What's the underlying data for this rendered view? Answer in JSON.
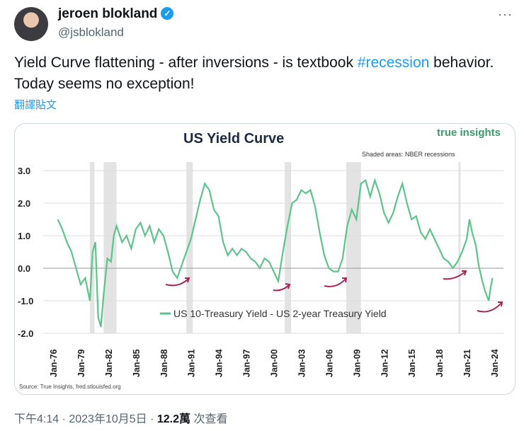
{
  "tweet": {
    "author_name": "jeroen blokland",
    "handle": "@jsblokland",
    "text_before": "Yield Curve flattening - after inversions - is textbook ",
    "hashtag": "#recession",
    "text_after": " behavior. Today seems no exception!",
    "translate_label": "翻譯貼文",
    "time": "下午4:14 · 2023年10月5日 · ",
    "views": "12.2萬",
    "views_label": " 次查看"
  },
  "chart_data": {
    "type": "line",
    "title": "US Yield Curve",
    "brand": "true insights",
    "note": "Shaded areas: NBER recessions",
    "legend": "US 10-Treasury Yield - US 2-year Treasury Yield",
    "source": "Source: True Insights, fred.stlouisfed.org",
    "ylim": [
      -2,
      3
    ],
    "yticks": [
      "3.0",
      "2.0",
      "1.0",
      "0.0",
      "-1.0",
      "-2.0"
    ],
    "xticks": [
      "Jan-76",
      "Jan-79",
      "Jan-82",
      "Jan-85",
      "Jan-88",
      "Jan-91",
      "Jan-94",
      "Jan-97",
      "Jan-00",
      "Jan-03",
      "Jan-06",
      "Jan-09",
      "Jan-12",
      "Jan-15",
      "Jan-18",
      "Jan-21",
      "Jan-24"
    ],
    "xlim": [
      1976,
      2024
    ],
    "recessions": [
      [
        1980.0,
        1980.5
      ],
      [
        1981.5,
        1982.9
      ],
      [
        1990.5,
        1991.2
      ],
      [
        2001.2,
        2001.9
      ],
      [
        2007.9,
        2009.5
      ],
      [
        2020.1,
        2020.3
      ]
    ],
    "line_color": "#5cc48a",
    "series": [
      [
        1976.5,
        1.5
      ],
      [
        1977,
        1.2
      ],
      [
        1977.5,
        0.8
      ],
      [
        1978,
        0.5
      ],
      [
        1978.5,
        0.0
      ],
      [
        1979,
        -0.5
      ],
      [
        1979.5,
        -0.3
      ],
      [
        1980,
        -1.0
      ],
      [
        1980.3,
        0.5
      ],
      [
        1980.6,
        0.8
      ],
      [
        1980.9,
        -1.5
      ],
      [
        1981.2,
        -1.8
      ],
      [
        1981.5,
        -0.8
      ],
      [
        1981.9,
        0.3
      ],
      [
        1982.3,
        0.2
      ],
      [
        1982.6,
        1.0
      ],
      [
        1982.9,
        1.3
      ],
      [
        1983.5,
        0.8
      ],
      [
        1984,
        1.0
      ],
      [
        1984.5,
        0.6
      ],
      [
        1985,
        1.2
      ],
      [
        1985.5,
        1.4
      ],
      [
        1986,
        1.0
      ],
      [
        1986.5,
        1.3
      ],
      [
        1987,
        0.8
      ],
      [
        1987.5,
        1.2
      ],
      [
        1988,
        1.0
      ],
      [
        1988.5,
        0.5
      ],
      [
        1989,
        -0.1
      ],
      [
        1989.5,
        -0.3
      ],
      [
        1990,
        0.1
      ],
      [
        1990.5,
        0.5
      ],
      [
        1991,
        0.9
      ],
      [
        1991.5,
        1.5
      ],
      [
        1992,
        2.1
      ],
      [
        1992.5,
        2.6
      ],
      [
        1993,
        2.4
      ],
      [
        1993.5,
        1.8
      ],
      [
        1994,
        1.6
      ],
      [
        1994.5,
        0.8
      ],
      [
        1995,
        0.4
      ],
      [
        1995.5,
        0.6
      ],
      [
        1996,
        0.4
      ],
      [
        1996.5,
        0.6
      ],
      [
        1997,
        0.5
      ],
      [
        1997.5,
        0.3
      ],
      [
        1998,
        0.2
      ],
      [
        1998.5,
        0.0
      ],
      [
        1999,
        0.3
      ],
      [
        1999.5,
        0.2
      ],
      [
        2000,
        -0.1
      ],
      [
        2000.5,
        -0.4
      ],
      [
        2001,
        0.5
      ],
      [
        2001.5,
        1.3
      ],
      [
        2002,
        2.0
      ],
      [
        2002.5,
        2.1
      ],
      [
        2003,
        2.4
      ],
      [
        2003.5,
        2.3
      ],
      [
        2004,
        2.4
      ],
      [
        2004.5,
        1.9
      ],
      [
        2005,
        1.1
      ],
      [
        2005.5,
        0.4
      ],
      [
        2006,
        0.0
      ],
      [
        2006.5,
        -0.1
      ],
      [
        2007,
        -0.1
      ],
      [
        2007.5,
        0.3
      ],
      [
        2008,
        1.3
      ],
      [
        2008.5,
        1.8
      ],
      [
        2009,
        1.5
      ],
      [
        2009.5,
        2.6
      ],
      [
        2010,
        2.7
      ],
      [
        2010.5,
        2.2
      ],
      [
        2011,
        2.7
      ],
      [
        2011.5,
        2.3
      ],
      [
        2012,
        1.7
      ],
      [
        2012.5,
        1.4
      ],
      [
        2013,
        1.7
      ],
      [
        2013.5,
        2.2
      ],
      [
        2014,
        2.6
      ],
      [
        2014.5,
        2.0
      ],
      [
        2015,
        1.5
      ],
      [
        2015.5,
        1.6
      ],
      [
        2016,
        1.1
      ],
      [
        2016.5,
        0.9
      ],
      [
        2017,
        1.2
      ],
      [
        2017.5,
        0.9
      ],
      [
        2018,
        0.6
      ],
      [
        2018.5,
        0.3
      ],
      [
        2019,
        0.2
      ],
      [
        2019.5,
        0.0
      ],
      [
        2020,
        0.2
      ],
      [
        2020.5,
        0.5
      ],
      [
        2021,
        0.9
      ],
      [
        2021.3,
        1.5
      ],
      [
        2021.6,
        1.1
      ],
      [
        2022,
        0.7
      ],
      [
        2022.3,
        0.1
      ],
      [
        2022.7,
        -0.4
      ],
      [
        2023,
        -0.7
      ],
      [
        2023.4,
        -1.0
      ],
      [
        2023.6,
        -0.6
      ],
      [
        2023.8,
        -0.3
      ]
    ]
  }
}
